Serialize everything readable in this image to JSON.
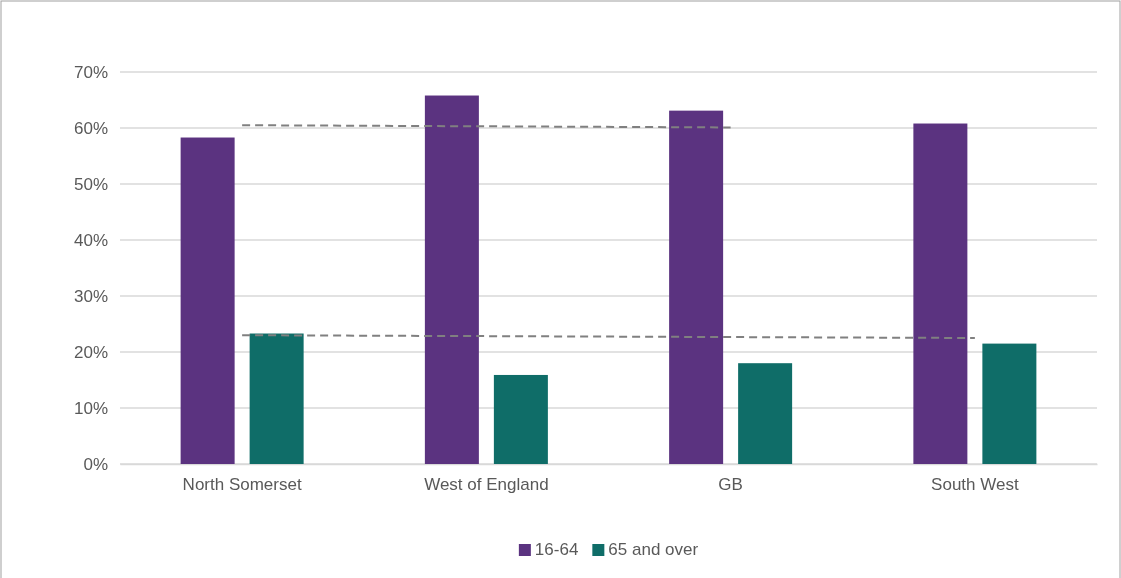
{
  "chart_data": {
    "type": "bar",
    "categories": [
      "North Somerset",
      "West of England",
      "GB",
      "South West"
    ],
    "series": [
      {
        "name": "16-64",
        "color": "#5b3380",
        "values": [
          58.3,
          65.8,
          63.1,
          60.8
        ]
      },
      {
        "name": "65 and over",
        "color": "#0f6d68",
        "values": [
          23.3,
          15.9,
          18.0,
          21.5
        ]
      },
      {
        "type": "line",
        "color": "#808080",
        "line_style": "dashed",
        "x": [
          "North Somerset",
          "GB"
        ],
        "values": [
          60.5,
          60.1
        ]
      },
      {
        "type": "line",
        "color": "#808080",
        "line_style": "dashed",
        "x": [
          "North Somerset",
          "South West"
        ],
        "values": [
          23.0,
          22.5
        ]
      }
    ],
    "ylim": [
      0,
      70
    ],
    "yticks": [
      {
        "value": 0,
        "label": "0%"
      },
      {
        "value": 10,
        "label": "10%"
      },
      {
        "value": 20,
        "label": "20%"
      },
      {
        "value": 30,
        "label": "30%"
      },
      {
        "value": 40,
        "label": "40%"
      },
      {
        "value": 50,
        "label": "50%"
      },
      {
        "value": 60,
        "label": "60%"
      },
      {
        "value": 70,
        "label": "70%"
      }
    ],
    "grid": "y",
    "legend": "bottom"
  }
}
